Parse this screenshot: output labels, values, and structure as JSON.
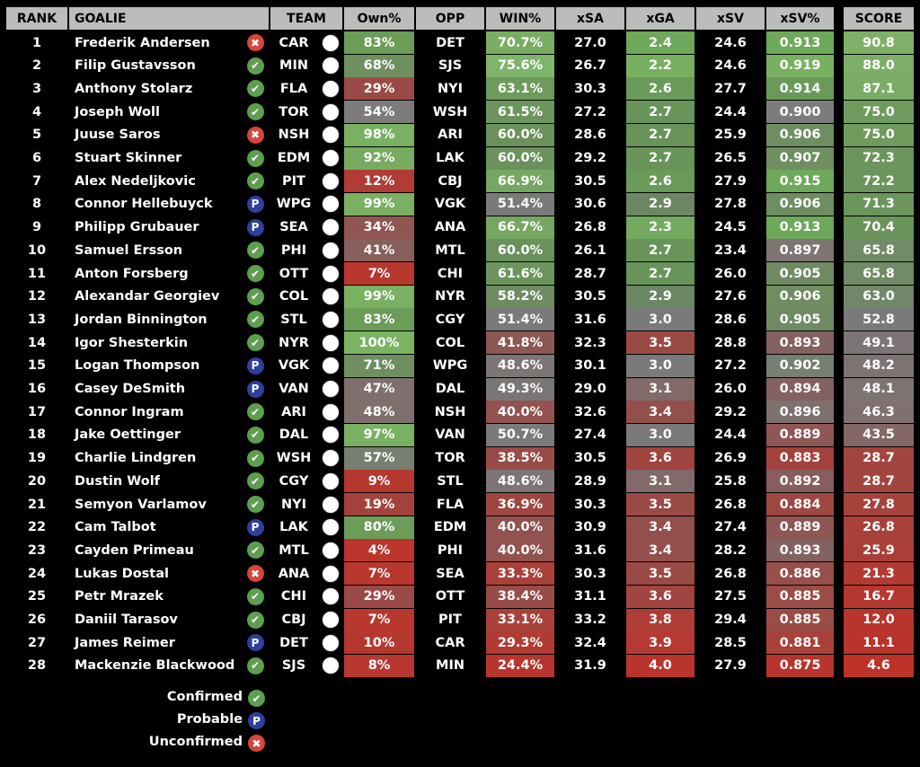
{
  "table": {
    "headers": {
      "rank": "RANK",
      "goalie": "GOALIE",
      "team": "TEAM",
      "own": "Own%",
      "opp": "OPP",
      "win": "WIN%",
      "xsa": "xSA",
      "xga": "xGA",
      "xsv": "xSV",
      "xsvp": "xSV%",
      "score": "SCORE"
    },
    "rows": [
      {
        "rank": "1",
        "goalie": "Frederik Andersen",
        "status": "unconfirmed",
        "team": "CAR",
        "own": "83%",
        "opp": "DET",
        "win": "70.7%",
        "xsa": "27.0",
        "xga": "2.4",
        "xsv": "24.6",
        "xsvp": "0.913",
        "score": "90.8",
        "colors": {
          "own": "#6b9c58",
          "win": "#79ad62",
          "xga": "#6ea85a",
          "xsvp": "#6ea85a",
          "score": "#7fb068"
        }
      },
      {
        "rank": "2",
        "goalie": "Filip Gustavsson",
        "status": "confirmed",
        "team": "MIN",
        "own": "68%",
        "opp": "SJS",
        "win": "75.6%",
        "xsa": "26.7",
        "xga": "2.2",
        "xsv": "24.6",
        "xsvp": "0.919",
        "score": "88.0",
        "colors": {
          "own": "#6f8f61",
          "win": "#7fb56a",
          "xga": "#78b062",
          "xsvp": "#78b062",
          "score": "#7cae67"
        }
      },
      {
        "rank": "3",
        "goalie": "Anthony Stolarz",
        "status": "confirmed",
        "team": "FLA",
        "own": "29%",
        "opp": "NYI",
        "win": "63.1%",
        "xsa": "30.3",
        "xga": "2.6",
        "xsv": "27.7",
        "xsvp": "0.914",
        "score": "87.1",
        "colors": {
          "own": "#9a4a46",
          "win": "#6e9a5e",
          "xga": "#6a9a5a",
          "xsvp": "#6a9a5a",
          "score": "#7aac66"
        }
      },
      {
        "rank": "4",
        "goalie": "Joseph Woll",
        "status": "confirmed",
        "team": "TOR",
        "own": "54%",
        "opp": "WSH",
        "win": "61.5%",
        "xsa": "27.2",
        "xga": "2.7",
        "xsv": "24.4",
        "xsvp": "0.900",
        "score": "75.0",
        "colors": {
          "own": "#7c7c7c",
          "win": "#6c955d",
          "xga": "#68945a",
          "xsvp": "#7c7c7c",
          "score": "#6e9a5e"
        }
      },
      {
        "rank": "5",
        "goalie": "Juuse Saros",
        "status": "unconfirmed",
        "team": "NSH",
        "own": "98%",
        "opp": "ARI",
        "win": "60.0%",
        "xsa": "28.6",
        "xga": "2.7",
        "xsv": "25.9",
        "xsvp": "0.906",
        "score": "75.0",
        "colors": {
          "own": "#79b062",
          "win": "#6a915c",
          "xga": "#68945a",
          "xsvp": "#6f8d62",
          "score": "#6e9a5e"
        }
      },
      {
        "rank": "6",
        "goalie": "Stuart Skinner",
        "status": "confirmed",
        "team": "EDM",
        "own": "92%",
        "opp": "LAK",
        "win": "60.0%",
        "xsa": "29.2",
        "xga": "2.7",
        "xsv": "26.5",
        "xsvp": "0.907",
        "score": "72.3",
        "colors": {
          "own": "#77ab60",
          "win": "#6a915c",
          "xga": "#68945a",
          "xsvp": "#6f8f62",
          "score": "#6c955d"
        }
      },
      {
        "rank": "7",
        "goalie": "Alex Nedeljkovic",
        "status": "confirmed",
        "team": "PIT",
        "own": "12%",
        "opp": "CBJ",
        "win": "66.9%",
        "xsa": "30.5",
        "xga": "2.6",
        "xsv": "27.9",
        "xsvp": "0.915",
        "score": "72.2",
        "colors": {
          "own": "#b03c35",
          "win": "#75a662",
          "xga": "#6a9a5a",
          "xsvp": "#6ea85a",
          "score": "#6c955d"
        }
      },
      {
        "rank": "8",
        "goalie": "Connor Hellebuyck",
        "status": "probable",
        "team": "WPG",
        "own": "99%",
        "opp": "VGK",
        "win": "51.4%",
        "xsa": "30.6",
        "xga": "2.9",
        "xsv": "27.8",
        "xsvp": "0.906",
        "score": "71.3",
        "colors": {
          "own": "#79b062",
          "win": "#7a7a7a",
          "xga": "#6c8764",
          "xsvp": "#6f8d62",
          "score": "#6c955d"
        }
      },
      {
        "rank": "9",
        "goalie": "Philipp Grubauer",
        "status": "probable",
        "team": "SEA",
        "own": "34%",
        "opp": "ANA",
        "win": "66.7%",
        "xsa": "26.8",
        "xga": "2.3",
        "xsv": "24.5",
        "xsvp": "0.913",
        "score": "70.4",
        "colors": {
          "own": "#8f5652",
          "win": "#75a662",
          "xga": "#73aa5f",
          "xsvp": "#6ea85a",
          "score": "#6b935c"
        }
      },
      {
        "rank": "10",
        "goalie": "Samuel Ersson",
        "status": "confirmed",
        "team": "PHI",
        "own": "41%",
        "opp": "MTL",
        "win": "60.0%",
        "xsa": "26.1",
        "xga": "2.7",
        "xsv": "23.4",
        "xsvp": "0.897",
        "score": "65.8",
        "colors": {
          "own": "#86605c",
          "win": "#6a915c",
          "xga": "#68945a",
          "xsvp": "#7d7474",
          "score": "#708b66"
        }
      },
      {
        "rank": "11",
        "goalie": "Anton Forsberg",
        "status": "confirmed",
        "team": "OTT",
        "own": "7%",
        "opp": "CHI",
        "win": "61.6%",
        "xsa": "28.7",
        "xga": "2.7",
        "xsv": "26.0",
        "xsvp": "0.905",
        "score": "65.8",
        "colors": {
          "own": "#b8372f",
          "win": "#6c955d",
          "xga": "#68945a",
          "xsvp": "#708a64",
          "score": "#708b66"
        }
      },
      {
        "rank": "12",
        "goalie": "Alexandar Georgiev",
        "status": "confirmed",
        "team": "COL",
        "own": "99%",
        "opp": "NYR",
        "win": "58.2%",
        "xsa": "30.5",
        "xga": "2.9",
        "xsv": "27.6",
        "xsvp": "0.906",
        "score": "63.0",
        "colors": {
          "own": "#79b062",
          "win": "#6e8b62",
          "xga": "#6c8764",
          "xsvp": "#6f8d62",
          "score": "#72876a"
        }
      },
      {
        "rank": "13",
        "goalie": "Jordan Binnington",
        "status": "confirmed",
        "team": "STL",
        "own": "83%",
        "opp": "CGY",
        "win": "51.4%",
        "xsa": "31.6",
        "xga": "3.0",
        "xsv": "28.6",
        "xsvp": "0.905",
        "score": "52.8",
        "colors": {
          "own": "#6b9c58",
          "win": "#7a7a7a",
          "xga": "#7a7a7a",
          "xsvp": "#708a64",
          "score": "#7a7a7a"
        }
      },
      {
        "rank": "14",
        "goalie": "Igor Shesterkin",
        "status": "confirmed",
        "team": "NYR",
        "own": "100%",
        "opp": "COL",
        "win": "41.8%",
        "xsa": "32.3",
        "xga": "3.5",
        "xsv": "28.8",
        "xsvp": "0.893",
        "score": "49.1",
        "colors": {
          "own": "#7ab463",
          "win": "#8d5753",
          "xga": "#9a4a45",
          "xsvp": "#846161",
          "score": "#7d7575"
        }
      },
      {
        "rank": "15",
        "goalie": "Logan Thompson",
        "status": "probable",
        "team": "VGK",
        "own": "71%",
        "opp": "WPG",
        "win": "48.6%",
        "xsa": "30.1",
        "xga": "3.0",
        "xsv": "27.2",
        "xsvp": "0.902",
        "score": "48.2",
        "colors": {
          "own": "#6f8f61",
          "win": "#7d7474",
          "xga": "#7a7a7a",
          "xsvp": "#777f72",
          "score": "#7e7373"
        }
      },
      {
        "rank": "16",
        "goalie": "Casey DeSmith",
        "status": "probable",
        "team": "VAN",
        "own": "47%",
        "opp": "DAL",
        "win": "49.3%",
        "xsa": "29.0",
        "xga": "3.1",
        "xsv": "26.0",
        "xsvp": "0.894",
        "score": "48.1",
        "colors": {
          "own": "#7f6f6d",
          "win": "#7b7676",
          "xga": "#816a69",
          "xsvp": "#846161",
          "score": "#7e7373"
        }
      },
      {
        "rank": "17",
        "goalie": "Connor Ingram",
        "status": "confirmed",
        "team": "ARI",
        "own": "48%",
        "opp": "NSH",
        "win": "40.0%",
        "xsa": "32.6",
        "xga": "3.4",
        "xsv": "29.2",
        "xsvp": "0.896",
        "score": "46.3",
        "colors": {
          "own": "#7f6f6d",
          "win": "#925250",
          "xga": "#934f4c",
          "xsvp": "#7f7070",
          "score": "#807070"
        }
      },
      {
        "rank": "18",
        "goalie": "Jake Oettinger",
        "status": "confirmed",
        "team": "DAL",
        "own": "97%",
        "opp": "VAN",
        "win": "50.7%",
        "xsa": "27.4",
        "xga": "3.0",
        "xsv": "24.4",
        "xsvp": "0.889",
        "score": "43.5",
        "colors": {
          "own": "#79b062",
          "win": "#7a7a7a",
          "xga": "#7a7a7a",
          "xsvp": "#8e5654",
          "score": "#846767"
        }
      },
      {
        "rank": "19",
        "goalie": "Charlie Lindgren",
        "status": "confirmed",
        "team": "WSH",
        "own": "57%",
        "opp": "TOR",
        "win": "38.5%",
        "xsa": "30.5",
        "xga": "3.6",
        "xsv": "26.9",
        "xsvp": "0.883",
        "score": "28.7",
        "colors": {
          "own": "#777f72",
          "win": "#984c48",
          "xga": "#a0443f",
          "xsvp": "#a3423c",
          "score": "#a3453f"
        }
      },
      {
        "rank": "20",
        "goalie": "Dustin Wolf",
        "status": "confirmed",
        "team": "CGY",
        "own": "9%",
        "opp": "STL",
        "win": "48.6%",
        "xsa": "28.9",
        "xga": "3.1",
        "xsv": "25.8",
        "xsvp": "0.892",
        "score": "28.7",
        "colors": {
          "own": "#b5382f",
          "win": "#7d7474",
          "xga": "#816a69",
          "xsvp": "#875e5d",
          "score": "#a3453f"
        }
      },
      {
        "rank": "21",
        "goalie": "Semyon Varlamov",
        "status": "confirmed",
        "team": "NYI",
        "own": "19%",
        "opp": "FLA",
        "win": "36.9%",
        "xsa": "30.3",
        "xga": "3.5",
        "xsv": "26.8",
        "xsvp": "0.884",
        "score": "27.8",
        "colors": {
          "own": "#a3423c",
          "win": "#9e4641",
          "xga": "#9a4a45",
          "xsvp": "#9e4843",
          "score": "#a5433d"
        }
      },
      {
        "rank": "22",
        "goalie": "Cam Talbot",
        "status": "probable",
        "team": "LAK",
        "own": "80%",
        "opp": "EDM",
        "win": "40.0%",
        "xsa": "30.9",
        "xga": "3.4",
        "xsv": "27.4",
        "xsvp": "0.889",
        "score": "26.8",
        "colors": {
          "own": "#6b9c58",
          "win": "#925250",
          "xga": "#934f4c",
          "xsvp": "#8e5654",
          "score": "#a8413a"
        }
      },
      {
        "rank": "23",
        "goalie": "Cayden Primeau",
        "status": "confirmed",
        "team": "MTL",
        "own": "4%",
        "opp": "PHI",
        "win": "40.0%",
        "xsa": "31.6",
        "xga": "3.4",
        "xsv": "28.2",
        "xsvp": "0.893",
        "score": "25.9",
        "colors": {
          "own": "#bc352c",
          "win": "#925250",
          "xga": "#934f4c",
          "xsvp": "#846161",
          "score": "#aa3f38"
        }
      },
      {
        "rank": "24",
        "goalie": "Lukas Dostal",
        "status": "unconfirmed",
        "team": "ANA",
        "own": "7%",
        "opp": "SEA",
        "win": "33.3%",
        "xsa": "30.3",
        "xga": "3.5",
        "xsv": "26.8",
        "xsvp": "0.886",
        "score": "21.3",
        "colors": {
          "own": "#b8372f",
          "win": "#a8413a",
          "xga": "#9a4a45",
          "xsvp": "#964f4b",
          "score": "#b13a33"
        }
      },
      {
        "rank": "25",
        "goalie": "Petr Mrazek",
        "status": "confirmed",
        "team": "CHI",
        "own": "29%",
        "opp": "OTT",
        "win": "38.4%",
        "xsa": "31.1",
        "xga": "3.6",
        "xsv": "27.5",
        "xsvp": "0.885",
        "score": "16.7",
        "colors": {
          "own": "#9a4a46",
          "win": "#984c48",
          "xga": "#a0443f",
          "xsvp": "#9a4c47",
          "score": "#b5372f"
        }
      },
      {
        "rank": "26",
        "goalie": "Daniil Tarasov",
        "status": "confirmed",
        "team": "CBJ",
        "own": "7%",
        "opp": "PIT",
        "win": "33.1%",
        "xsa": "33.2",
        "xga": "3.8",
        "xsv": "29.4",
        "xsvp": "0.885",
        "score": "12.0",
        "colors": {
          "own": "#b8372f",
          "win": "#a8413a",
          "xga": "#ae3d36",
          "xsvp": "#9a4c47",
          "score": "#b8352d"
        }
      },
      {
        "rank": "27",
        "goalie": "James Reimer",
        "status": "probable",
        "team": "DET",
        "own": "10%",
        "opp": "CAR",
        "win": "29.3%",
        "xsa": "32.4",
        "xga": "3.9",
        "xsv": "28.5",
        "xsvp": "0.881",
        "score": "11.1",
        "colors": {
          "own": "#b5382f",
          "win": "#b13a33",
          "xga": "#b43a33",
          "xsvp": "#a8413a",
          "score": "#b9342c"
        }
      },
      {
        "rank": "28",
        "goalie": "Mackenzie Blackwood",
        "status": "confirmed",
        "team": "SJS",
        "own": "8%",
        "opp": "MIN",
        "win": "24.4%",
        "xsa": "31.9",
        "xga": "4.0",
        "xsv": "27.9",
        "xsvp": "0.875",
        "score": "4.6",
        "colors": {
          "own": "#b8372f",
          "win": "#b8352d",
          "xga": "#bb342b",
          "xsvp": "#b8352d",
          "score": "#be3229"
        }
      }
    ]
  },
  "status_icons": {
    "confirmed": {
      "glyph": "✔",
      "icon": "check-circle-icon",
      "color": "#5e9e50"
    },
    "probable": {
      "glyph": "P",
      "icon": "probable-p-icon",
      "color": "#2f3f9c"
    },
    "unconfirmed": {
      "glyph": "✖",
      "icon": "x-circle-icon",
      "color": "#d5463d"
    }
  },
  "legend": {
    "items": [
      {
        "status": "confirmed",
        "label": "Confirmed"
      },
      {
        "status": "probable",
        "label": "Probable"
      },
      {
        "status": "unconfirmed",
        "label": "Unconfirmed"
      }
    ]
  },
  "theme": {
    "header_bg": "#bcbcbc",
    "cell_dark": "#000000",
    "neutral_gray": "#7a7a7a"
  }
}
